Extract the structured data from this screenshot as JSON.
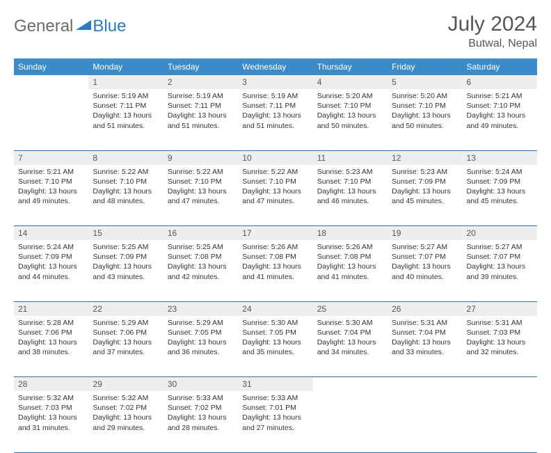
{
  "logo": {
    "text1": "General",
    "text2": "Blue"
  },
  "title": {
    "month": "July 2024",
    "location": "Butwal, Nepal"
  },
  "colors": {
    "header_bg": "#3b8bc8",
    "header_text": "#ffffff",
    "daynum_bg": "#eeeeee",
    "row_border": "#2f6fa8",
    "logo_gray": "#6b6b6b",
    "logo_blue": "#2a7bbf",
    "title_color": "#555555"
  },
  "weekdays": [
    "Sunday",
    "Monday",
    "Tuesday",
    "Wednesday",
    "Thursday",
    "Friday",
    "Saturday"
  ],
  "weeks": [
    [
      {
        "num": "",
        "sunrise": "",
        "sunset": "",
        "daylight": ""
      },
      {
        "num": "1",
        "sunrise": "5:19 AM",
        "sunset": "7:11 PM",
        "daylight": "13 hours and 51 minutes."
      },
      {
        "num": "2",
        "sunrise": "5:19 AM",
        "sunset": "7:11 PM",
        "daylight": "13 hours and 51 minutes."
      },
      {
        "num": "3",
        "sunrise": "5:19 AM",
        "sunset": "7:11 PM",
        "daylight": "13 hours and 51 minutes."
      },
      {
        "num": "4",
        "sunrise": "5:20 AM",
        "sunset": "7:10 PM",
        "daylight": "13 hours and 50 minutes."
      },
      {
        "num": "5",
        "sunrise": "5:20 AM",
        "sunset": "7:10 PM",
        "daylight": "13 hours and 50 minutes."
      },
      {
        "num": "6",
        "sunrise": "5:21 AM",
        "sunset": "7:10 PM",
        "daylight": "13 hours and 49 minutes."
      }
    ],
    [
      {
        "num": "7",
        "sunrise": "5:21 AM",
        "sunset": "7:10 PM",
        "daylight": "13 hours and 49 minutes."
      },
      {
        "num": "8",
        "sunrise": "5:22 AM",
        "sunset": "7:10 PM",
        "daylight": "13 hours and 48 minutes."
      },
      {
        "num": "9",
        "sunrise": "5:22 AM",
        "sunset": "7:10 PM",
        "daylight": "13 hours and 47 minutes."
      },
      {
        "num": "10",
        "sunrise": "5:22 AM",
        "sunset": "7:10 PM",
        "daylight": "13 hours and 47 minutes."
      },
      {
        "num": "11",
        "sunrise": "5:23 AM",
        "sunset": "7:10 PM",
        "daylight": "13 hours and 46 minutes."
      },
      {
        "num": "12",
        "sunrise": "5:23 AM",
        "sunset": "7:09 PM",
        "daylight": "13 hours and 45 minutes."
      },
      {
        "num": "13",
        "sunrise": "5:24 AM",
        "sunset": "7:09 PM",
        "daylight": "13 hours and 45 minutes."
      }
    ],
    [
      {
        "num": "14",
        "sunrise": "5:24 AM",
        "sunset": "7:09 PM",
        "daylight": "13 hours and 44 minutes."
      },
      {
        "num": "15",
        "sunrise": "5:25 AM",
        "sunset": "7:09 PM",
        "daylight": "13 hours and 43 minutes."
      },
      {
        "num": "16",
        "sunrise": "5:25 AM",
        "sunset": "7:08 PM",
        "daylight": "13 hours and 42 minutes."
      },
      {
        "num": "17",
        "sunrise": "5:26 AM",
        "sunset": "7:08 PM",
        "daylight": "13 hours and 41 minutes."
      },
      {
        "num": "18",
        "sunrise": "5:26 AM",
        "sunset": "7:08 PM",
        "daylight": "13 hours and 41 minutes."
      },
      {
        "num": "19",
        "sunrise": "5:27 AM",
        "sunset": "7:07 PM",
        "daylight": "13 hours and 40 minutes."
      },
      {
        "num": "20",
        "sunrise": "5:27 AM",
        "sunset": "7:07 PM",
        "daylight": "13 hours and 39 minutes."
      }
    ],
    [
      {
        "num": "21",
        "sunrise": "5:28 AM",
        "sunset": "7:06 PM",
        "daylight": "13 hours and 38 minutes."
      },
      {
        "num": "22",
        "sunrise": "5:29 AM",
        "sunset": "7:06 PM",
        "daylight": "13 hours and 37 minutes."
      },
      {
        "num": "23",
        "sunrise": "5:29 AM",
        "sunset": "7:05 PM",
        "daylight": "13 hours and 36 minutes."
      },
      {
        "num": "24",
        "sunrise": "5:30 AM",
        "sunset": "7:05 PM",
        "daylight": "13 hours and 35 minutes."
      },
      {
        "num": "25",
        "sunrise": "5:30 AM",
        "sunset": "7:04 PM",
        "daylight": "13 hours and 34 minutes."
      },
      {
        "num": "26",
        "sunrise": "5:31 AM",
        "sunset": "7:04 PM",
        "daylight": "13 hours and 33 minutes."
      },
      {
        "num": "27",
        "sunrise": "5:31 AM",
        "sunset": "7:03 PM",
        "daylight": "13 hours and 32 minutes."
      }
    ],
    [
      {
        "num": "28",
        "sunrise": "5:32 AM",
        "sunset": "7:03 PM",
        "daylight": "13 hours and 31 minutes."
      },
      {
        "num": "29",
        "sunrise": "5:32 AM",
        "sunset": "7:02 PM",
        "daylight": "13 hours and 29 minutes."
      },
      {
        "num": "30",
        "sunrise": "5:33 AM",
        "sunset": "7:02 PM",
        "daylight": "13 hours and 28 minutes."
      },
      {
        "num": "31",
        "sunrise": "5:33 AM",
        "sunset": "7:01 PM",
        "daylight": "13 hours and 27 minutes."
      },
      {
        "num": "",
        "sunrise": "",
        "sunset": "",
        "daylight": ""
      },
      {
        "num": "",
        "sunrise": "",
        "sunset": "",
        "daylight": ""
      },
      {
        "num": "",
        "sunrise": "",
        "sunset": "",
        "daylight": ""
      }
    ]
  ],
  "labels": {
    "sunrise": "Sunrise:",
    "sunset": "Sunset:",
    "daylight": "Daylight:"
  }
}
